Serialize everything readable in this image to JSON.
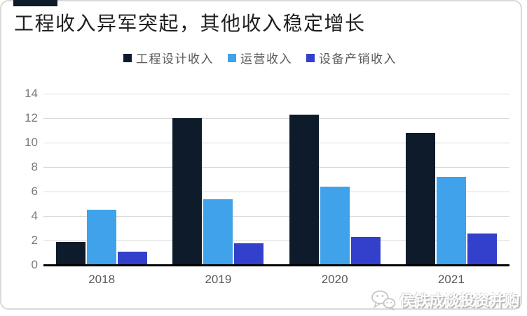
{
  "header": {
    "title": "工程收入异军突起，其他收入稳定增长",
    "accent_color": "#0d1b2b"
  },
  "legend": {
    "items": [
      {
        "label": "工程设计收入",
        "color": "#0d1b2b"
      },
      {
        "label": "运营收入",
        "color": "#3fa2ea"
      },
      {
        "label": "设备产销收入",
        "color": "#3340cb"
      }
    ]
  },
  "chart_data": {
    "type": "bar",
    "title": "工程收入异军突起，其他收入稳定增长",
    "categories": [
      "2018",
      "2019",
      "2020",
      "2021"
    ],
    "series": [
      {
        "name": "工程设计收入",
        "color": "#0d1b2b",
        "values": [
          1.9,
          12.0,
          12.3,
          10.8
        ]
      },
      {
        "name": "运营收入",
        "color": "#3fa2ea",
        "values": [
          4.5,
          5.4,
          6.4,
          7.2
        ]
      },
      {
        "name": "设备产销收入",
        "color": "#3340cb",
        "values": [
          1.1,
          1.8,
          2.3,
          2.6
        ]
      }
    ],
    "xlabel": "",
    "ylabel": "",
    "ylim": [
      0,
      14
    ],
    "yticks": [
      0,
      2,
      4,
      6,
      8,
      10,
      12,
      14
    ],
    "grid": true,
    "gridline_color": "#d9d9d9",
    "axis_line_color": "#000000",
    "legend_position": "top"
  },
  "watermark": {
    "text": "侯铁成谈投资并购",
    "icon": "wechat-icon"
  }
}
